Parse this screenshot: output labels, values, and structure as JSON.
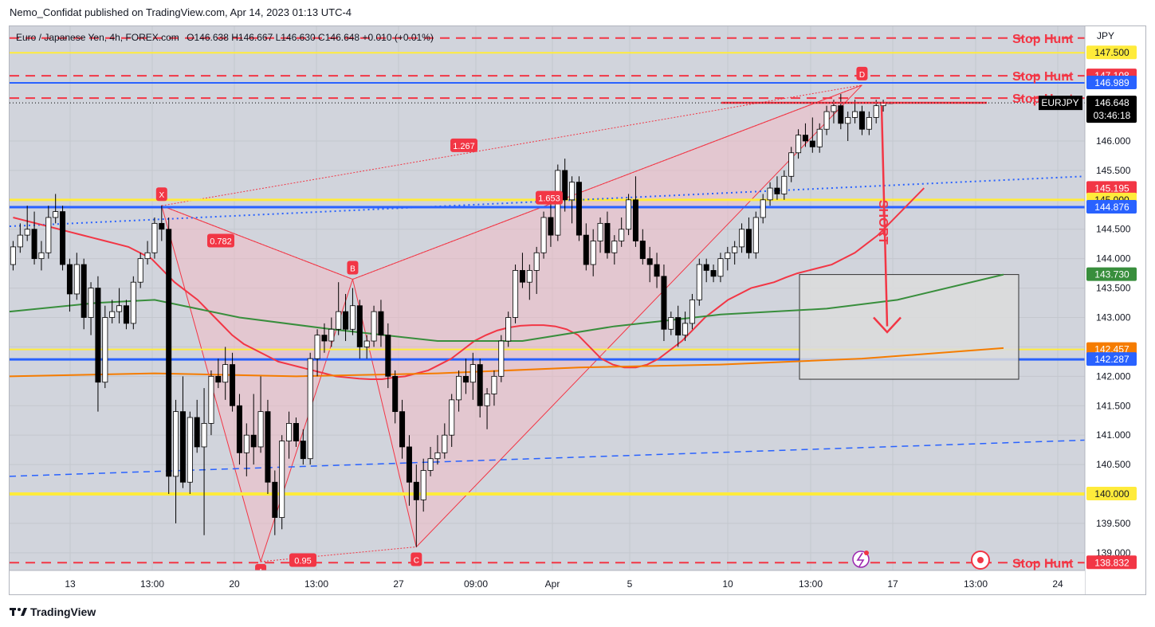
{
  "publisher_line": "Nemo_Confidat published on TradingView.com, Apr 14, 2023 01:13 UTC-4",
  "legend": {
    "symbol": "Euro / Japanese Yen, 4h, FOREX.com",
    "o_label": "O",
    "o": "146.638",
    "h_label": "H",
    "h": "146.667",
    "l_label": "L",
    "l": "146.630",
    "c_label": "C",
    "c": "146.648",
    "change": "+0.010 (+0.01%)"
  },
  "footer": {
    "brand": "TradingView",
    "logo_icon": "tradingview-logo-icon"
  },
  "colors": {
    "bg": "#d1d4dc",
    "up": "#ffffff",
    "down": "#000000",
    "ema_red": "#f23645",
    "ema_green": "#388e3c",
    "ema_orange": "#f57c00",
    "blue_line": "#2962ff",
    "yellow_line": "#ffeb3b",
    "stop_red": "#f23645",
    "harmonic_fill": "#f8b9c0"
  },
  "chart_data": {
    "type": "candlestick",
    "symbol": "EURJPY",
    "timeframe": "4h",
    "currency": "JPY",
    "ylim": [
      138.7,
      147.95
    ],
    "y_ticks": [
      "139.000",
      "139.500",
      "140.000",
      "140.500",
      "141.000",
      "141.500",
      "142.000",
      "142.500",
      "143.000",
      "143.500",
      "144.000",
      "144.500",
      "145.000",
      "145.500",
      "146.000"
    ],
    "x_tick_labels": [
      "13",
      "13:00",
      "20",
      "13:00",
      "27",
      "09:00",
      "Apr",
      "5",
      "10",
      "13:00",
      "17",
      "13:00",
      "24"
    ],
    "bar_count": 130,
    "bars_visible": 152,
    "candles": [
      [
        143.9,
        144.3,
        143.8,
        144.2
      ],
      [
        144.2,
        144.6,
        144.1,
        144.4
      ],
      [
        144.4,
        144.9,
        144.3,
        144.5
      ],
      [
        144.5,
        144.8,
        143.9,
        144.0
      ],
      [
        144.0,
        144.3,
        143.8,
        144.1
      ],
      [
        144.1,
        144.9,
        144.0,
        144.7
      ],
      [
        144.7,
        145.1,
        144.6,
        144.8
      ],
      [
        144.8,
        144.9,
        143.8,
        143.9
      ],
      [
        143.9,
        144.0,
        143.1,
        143.4
      ],
      [
        143.4,
        144.1,
        143.3,
        143.9
      ],
      [
        143.9,
        144.0,
        142.8,
        143.0
      ],
      [
        143.0,
        143.6,
        142.7,
        143.5
      ],
      [
        143.5,
        143.7,
        141.4,
        141.9
      ],
      [
        141.9,
        143.2,
        141.8,
        143.0
      ],
      [
        143.0,
        143.3,
        142.9,
        143.1
      ],
      [
        143.1,
        143.5,
        142.9,
        143.2
      ],
      [
        143.2,
        143.3,
        142.8,
        142.9
      ],
      [
        142.9,
        143.7,
        142.8,
        143.6
      ],
      [
        143.6,
        144.1,
        143.5,
        144.0
      ],
      [
        144.0,
        144.3,
        143.9,
        144.1
      ],
      [
        144.1,
        144.7,
        144.0,
        144.6
      ],
      [
        144.6,
        144.9,
        144.3,
        144.5
      ],
      [
        144.5,
        144.7,
        140.0,
        140.3
      ],
      [
        140.3,
        141.6,
        139.5,
        141.4
      ],
      [
        141.4,
        142.0,
        140.1,
        140.2
      ],
      [
        140.2,
        141.4,
        140.0,
        141.3
      ],
      [
        141.3,
        141.6,
        140.7,
        140.8
      ],
      [
        140.8,
        141.8,
        139.3,
        141.2
      ],
      [
        141.2,
        142.1,
        141.0,
        142.0
      ],
      [
        142.0,
        142.3,
        141.8,
        141.9
      ],
      [
        141.9,
        142.5,
        141.6,
        142.2
      ],
      [
        142.2,
        142.4,
        141.4,
        141.5
      ],
      [
        141.5,
        141.7,
        140.5,
        140.7
      ],
      [
        140.7,
        141.2,
        140.3,
        141.0
      ],
      [
        141.0,
        141.7,
        140.5,
        140.8
      ],
      [
        140.8,
        142.0,
        140.7,
        141.4
      ],
      [
        141.4,
        141.6,
        140.0,
        140.2
      ],
      [
        140.2,
        140.4,
        139.3,
        139.6
      ],
      [
        139.6,
        141.0,
        139.4,
        140.9
      ],
      [
        140.9,
        141.4,
        140.6,
        141.2
      ],
      [
        141.2,
        141.3,
        140.8,
        140.9
      ],
      [
        140.9,
        141.1,
        140.5,
        140.6
      ],
      [
        140.6,
        142.4,
        140.5,
        142.3
      ],
      [
        142.3,
        142.8,
        142.0,
        142.7
      ],
      [
        142.7,
        142.9,
        142.4,
        142.6
      ],
      [
        142.6,
        143.0,
        142.5,
        142.8
      ],
      [
        142.8,
        143.6,
        142.7,
        143.1
      ],
      [
        143.1,
        143.4,
        142.6,
        142.8
      ],
      [
        142.8,
        143.5,
        142.7,
        143.2
      ],
      [
        143.2,
        143.3,
        142.3,
        142.5
      ],
      [
        142.5,
        142.7,
        142.3,
        142.6
      ],
      [
        142.6,
        143.2,
        142.5,
        143.1
      ],
      [
        143.1,
        143.3,
        142.5,
        142.7
      ],
      [
        142.7,
        142.9,
        141.8,
        142.0
      ],
      [
        142.0,
        142.1,
        141.2,
        141.4
      ],
      [
        141.4,
        141.6,
        140.6,
        140.8
      ],
      [
        140.8,
        141.0,
        139.8,
        140.2
      ],
      [
        140.2,
        140.5,
        139.1,
        139.9
      ],
      [
        139.9,
        140.6,
        139.7,
        140.4
      ],
      [
        140.4,
        140.8,
        140.3,
        140.6
      ],
      [
        140.6,
        141.0,
        140.5,
        140.7
      ],
      [
        140.7,
        141.2,
        140.6,
        141.0
      ],
      [
        141.0,
        141.7,
        140.8,
        141.6
      ],
      [
        141.6,
        142.1,
        141.4,
        142.0
      ],
      [
        142.0,
        142.3,
        141.7,
        141.9
      ],
      [
        141.9,
        142.4,
        141.6,
        142.2
      ],
      [
        142.2,
        142.3,
        141.3,
        141.5
      ],
      [
        141.5,
        141.8,
        141.1,
        141.7
      ],
      [
        141.7,
        142.1,
        141.5,
        142.0
      ],
      [
        142.0,
        142.7,
        141.9,
        142.6
      ],
      [
        142.6,
        143.1,
        142.5,
        143.0
      ],
      [
        143.0,
        143.9,
        142.9,
        143.8
      ],
      [
        143.8,
        144.1,
        143.5,
        143.6
      ],
      [
        143.6,
        143.9,
        143.3,
        143.8
      ],
      [
        143.8,
        144.2,
        143.4,
        144.1
      ],
      [
        144.1,
        144.8,
        144.0,
        144.7
      ],
      [
        144.7,
        145.1,
        144.2,
        144.4
      ],
      [
        144.4,
        145.6,
        144.3,
        145.5
      ],
      [
        145.5,
        145.7,
        144.8,
        145.0
      ],
      [
        145.0,
        145.4,
        144.6,
        145.3
      ],
      [
        145.3,
        145.4,
        144.3,
        144.4
      ],
      [
        144.4,
        144.6,
        143.8,
        143.9
      ],
      [
        143.9,
        144.5,
        143.7,
        144.3
      ],
      [
        144.3,
        144.7,
        144.1,
        144.6
      ],
      [
        144.6,
        144.8,
        144.0,
        144.1
      ],
      [
        144.1,
        144.4,
        143.9,
        144.3
      ],
      [
        144.3,
        144.7,
        144.2,
        144.5
      ],
      [
        144.5,
        145.1,
        144.4,
        145.0
      ],
      [
        145.0,
        145.4,
        144.2,
        144.3
      ],
      [
        144.3,
        144.5,
        143.9,
        144.0
      ],
      [
        144.0,
        144.2,
        143.6,
        143.9
      ],
      [
        143.9,
        144.1,
        143.5,
        143.7
      ],
      [
        143.7,
        143.9,
        142.6,
        142.8
      ],
      [
        142.8,
        143.1,
        142.7,
        143.0
      ],
      [
        143.0,
        143.2,
        142.5,
        142.7
      ],
      [
        142.7,
        143.1,
        142.6,
        142.9
      ],
      [
        142.9,
        143.4,
        142.8,
        143.3
      ],
      [
        143.3,
        144.0,
        143.2,
        143.9
      ],
      [
        143.9,
        144.0,
        143.6,
        143.8
      ],
      [
        143.8,
        143.9,
        143.6,
        143.7
      ],
      [
        143.7,
        144.1,
        143.6,
        144.0
      ],
      [
        144.0,
        144.2,
        143.8,
        144.1
      ],
      [
        144.1,
        144.3,
        143.9,
        144.2
      ],
      [
        144.2,
        144.6,
        144.1,
        144.5
      ],
      [
        144.5,
        144.7,
        144.0,
        144.1
      ],
      [
        144.1,
        144.8,
        144.0,
        144.7
      ],
      [
        144.7,
        145.1,
        144.6,
        145.0
      ],
      [
        145.0,
        145.3,
        144.9,
        145.2
      ],
      [
        145.2,
        145.4,
        145.0,
        145.1
      ],
      [
        145.1,
        145.5,
        145.0,
        145.4
      ],
      [
        145.4,
        145.9,
        145.3,
        145.8
      ],
      [
        145.8,
        146.2,
        145.7,
        146.1
      ],
      [
        146.1,
        146.3,
        145.9,
        146.0
      ],
      [
        146.0,
        146.4,
        145.8,
        145.9
      ],
      [
        145.9,
        146.3,
        145.8,
        146.2
      ],
      [
        146.2,
        146.6,
        146.1,
        146.5
      ],
      [
        146.5,
        146.7,
        146.3,
        146.6
      ],
      [
        146.6,
        146.8,
        146.2,
        146.3
      ],
      [
        146.3,
        146.5,
        146.0,
        146.4
      ],
      [
        146.4,
        146.7,
        146.3,
        146.5
      ],
      [
        146.5,
        146.6,
        146.1,
        146.2
      ],
      [
        146.2,
        146.5,
        146.1,
        146.4
      ],
      [
        146.4,
        146.7,
        146.3,
        146.6
      ],
      [
        146.6,
        146.7,
        146.5,
        146.65
      ],
      [
        146.65,
        146.667,
        146.63,
        146.648
      ]
    ],
    "moving_averages": [
      {
        "color": "#f23645",
        "values": [
          144.7,
          144.65,
          144.6,
          144.55,
          144.5,
          144.45,
          144.4,
          144.35,
          144.3,
          144.25,
          144.2,
          144.1,
          144.0,
          143.8,
          143.6,
          143.45,
          143.3,
          143.1,
          142.9,
          142.7,
          142.55,
          142.45,
          142.35,
          142.25,
          142.2,
          142.15,
          142.1,
          142.05,
          142.0,
          141.98,
          141.96,
          141.95,
          141.95,
          141.98,
          142.0,
          142.05,
          142.1,
          142.2,
          142.3,
          142.45,
          142.6,
          142.7,
          142.78,
          142.83,
          142.86,
          142.87,
          142.87,
          142.85,
          142.8,
          142.7,
          142.5,
          142.3,
          142.2,
          142.15,
          142.15,
          142.2,
          142.3,
          142.45,
          142.6,
          142.8,
          143.0,
          143.15,
          143.3,
          143.4,
          143.5,
          143.55,
          143.6,
          143.68,
          143.75,
          143.8,
          143.85,
          143.9,
          144.0,
          144.1,
          144.25,
          144.4,
          144.6,
          144.8,
          145.0,
          145.2
        ]
      }
    ],
    "price_labels": [
      "147.500",
      "147.108",
      "146.989",
      "146.648",
      "145.195",
      "145.000",
      "144.876",
      "143.730",
      "142.457",
      "142.287",
      "140.000",
      "138.832"
    ],
    "current_price_tag": {
      "symbol": "EURJPY",
      "price": "146.648",
      "countdown": "03:46:18"
    },
    "annotations": {
      "stop_hunt": [
        "Stop Hunt",
        "Stop Hunt",
        "Stop Hunt",
        "Stop Hunt"
      ],
      "short_label": "SHORT",
      "harmonic_points": [
        "X",
        "B",
        "D",
        "C",
        "A"
      ],
      "ratios": [
        "1.267",
        "0.782",
        "1.653",
        "0.95"
      ]
    }
  }
}
